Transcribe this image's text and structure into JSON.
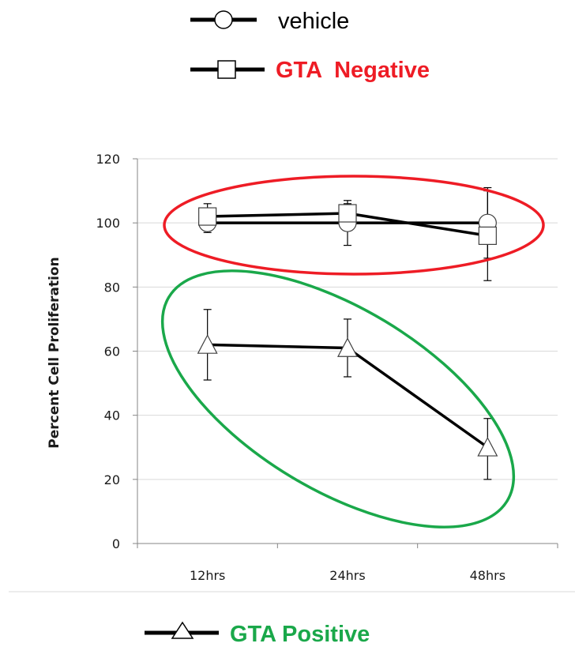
{
  "legend": [
    {
      "label": "vehicle",
      "marker": "circle",
      "color": "#000000"
    },
    {
      "label": "GTA  Negative",
      "marker": "square",
      "color": "#ee1c25"
    },
    {
      "label": "GTA Positive",
      "marker": "triangle",
      "color": "#1aa84a"
    }
  ],
  "chart_data": {
    "type": "line",
    "categories": [
      "12hrs",
      "24hrs",
      "48hrs"
    ],
    "ylabel": "Percent Cell Proliferation",
    "ylim": [
      0,
      120
    ],
    "yticks": [
      0,
      20,
      40,
      60,
      80,
      100,
      120
    ],
    "grid": "horizontal",
    "series": [
      {
        "name": "vehicle",
        "marker": "circle",
        "values": [
          100,
          100,
          100
        ],
        "err_low": [
          97,
          93,
          89
        ],
        "err_high": [
          103,
          107,
          111
        ]
      },
      {
        "name": "GTA  Negative",
        "marker": "square",
        "values": [
          102,
          103,
          96
        ],
        "err_low": [
          98,
          99,
          82
        ],
        "err_high": [
          106,
          106,
          110
        ]
      },
      {
        "name": "GTA Positive",
        "marker": "triangle",
        "values": [
          62,
          61,
          30
        ],
        "err_low": [
          51,
          52,
          20
        ],
        "err_high": [
          73,
          70,
          39
        ]
      }
    ],
    "annotations": [
      {
        "type": "ellipse",
        "color": "#ee1c25",
        "encloses": [
          "vehicle",
          "GTA  Negative"
        ]
      },
      {
        "type": "ellipse",
        "color": "#1aa84a",
        "encloses": [
          "GTA Positive"
        ]
      }
    ]
  }
}
